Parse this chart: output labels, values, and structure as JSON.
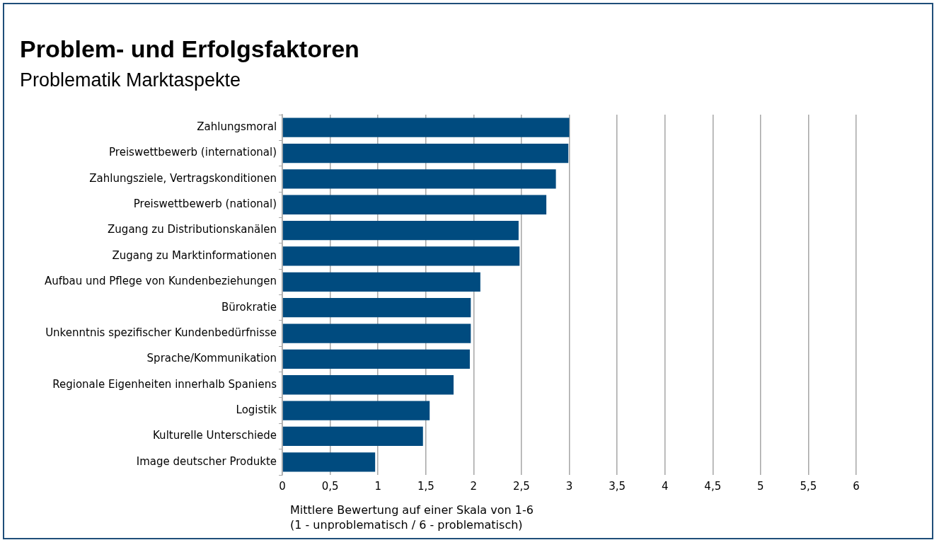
{
  "chart_data": {
    "type": "bar",
    "orientation": "horizontal",
    "title": "Problem- und Erfolgsfaktoren",
    "subtitle": "Problematik Marktaspekte",
    "xlabel": "Mittlere Bewertung auf einer Skala von 1-6\n(1 - unproblematisch / 6 - problematisch)",
    "categories": [
      "Zahlungsmoral",
      "Preiswettbewerb (international)",
      "Zahlungsziele, Vertragskonditionen",
      "Preiswettbewerb (national)",
      "Zugang zu Distributionskanälen",
      "Zugang zu Marktinformationen",
      "Aufbau und Pflege von Kundenbeziehungen",
      "Bürokratie",
      "Unkenntnis spezifischer Kundenbedürfnisse",
      "Sprache/Kommunikation",
      "Regionale Eigenheiten innerhalb Spaniens",
      "Logistik",
      "Kulturelle Unterschiede",
      "Image deutscher Produkte"
    ],
    "values": [
      3.0,
      2.99,
      2.86,
      2.76,
      2.47,
      2.48,
      2.07,
      1.97,
      1.97,
      1.96,
      1.79,
      1.54,
      1.47,
      0.97
    ],
    "color": "#004b7f",
    "xlim": [
      0,
      6
    ],
    "xticks": [
      0,
      {
        "value": 0.5,
        "label": "0,5"
      },
      1,
      {
        "value": 1.5,
        "label": "1,5"
      },
      2,
      {
        "value": 2.5,
        "label": "2,5"
      },
      3,
      {
        "value": 3.5,
        "label": "3,5"
      },
      4,
      {
        "value": 4.5,
        "label": "4,5"
      },
      5,
      {
        "value": 5.5,
        "label": "5,5"
      },
      6
    ],
    "grid": "x",
    "legend": false
  }
}
